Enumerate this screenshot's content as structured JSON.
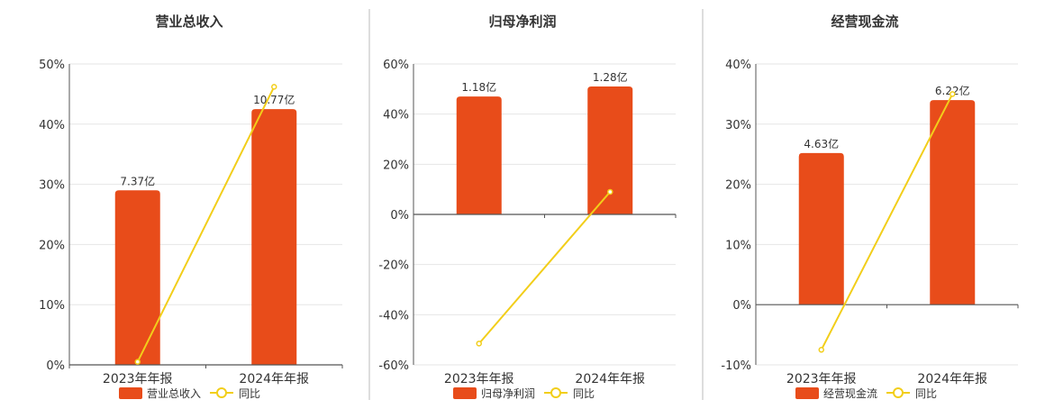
{
  "legend_line_label": "同比",
  "colors": {
    "bar": "#E84C1A",
    "line": "#F2CE1A",
    "grid": "#E6E6E6",
    "axis": "#555555",
    "divider": "#BBBBBB",
    "text": "#333333"
  },
  "chart_data": [
    {
      "type": "bar",
      "title": "营业总收入",
      "categories": [
        "2023年年报",
        "2024年年报"
      ],
      "series": [
        {
          "name": "营业总收入",
          "type": "bar",
          "values": [
            29.0,
            42.5
          ],
          "labels": [
            "7.37亿",
            "10.77亿"
          ]
        },
        {
          "name": "同比",
          "type": "line",
          "values": [
            0.5,
            46.2
          ]
        }
      ],
      "ylim": [
        0,
        50
      ],
      "yticks": [
        0,
        10,
        20,
        30,
        40,
        50
      ],
      "ytick_labels": [
        "0%",
        "10%",
        "20%",
        "30%",
        "40%",
        "50%"
      ],
      "legend": "bottom",
      "grid": true
    },
    {
      "type": "bar",
      "title": "归母净利润",
      "categories": [
        "2023年年报",
        "2024年年报"
      ],
      "series": [
        {
          "name": "归母净利润",
          "type": "bar",
          "values": [
            47.0,
            51.0
          ],
          "labels": [
            "1.18亿",
            "1.28亿"
          ]
        },
        {
          "name": "同比",
          "type": "line",
          "values": [
            -51.5,
            9.0
          ]
        }
      ],
      "ylim": [
        -60,
        60
      ],
      "yticks": [
        -60,
        -40,
        -20,
        0,
        20,
        40,
        60
      ],
      "ytick_labels": [
        "-60%",
        "-40%",
        "-20%",
        "0%",
        "20%",
        "40%",
        "60%"
      ],
      "legend": "bottom",
      "grid": true
    },
    {
      "type": "bar",
      "title": "经营现金流",
      "categories": [
        "2023年年报",
        "2024年年报"
      ],
      "series": [
        {
          "name": "经营现金流",
          "type": "bar",
          "values": [
            25.2,
            34.0
          ],
          "labels": [
            "4.63亿",
            "6.22亿"
          ]
        },
        {
          "name": "同比",
          "type": "line",
          "values": [
            -7.5,
            35.0
          ]
        }
      ],
      "ylim": [
        -10,
        40
      ],
      "yticks": [
        -10,
        0,
        10,
        20,
        30,
        40
      ],
      "ytick_labels": [
        "-10%",
        "0%",
        "10%",
        "20%",
        "30%",
        "40%"
      ],
      "legend": "bottom",
      "grid": true
    }
  ]
}
